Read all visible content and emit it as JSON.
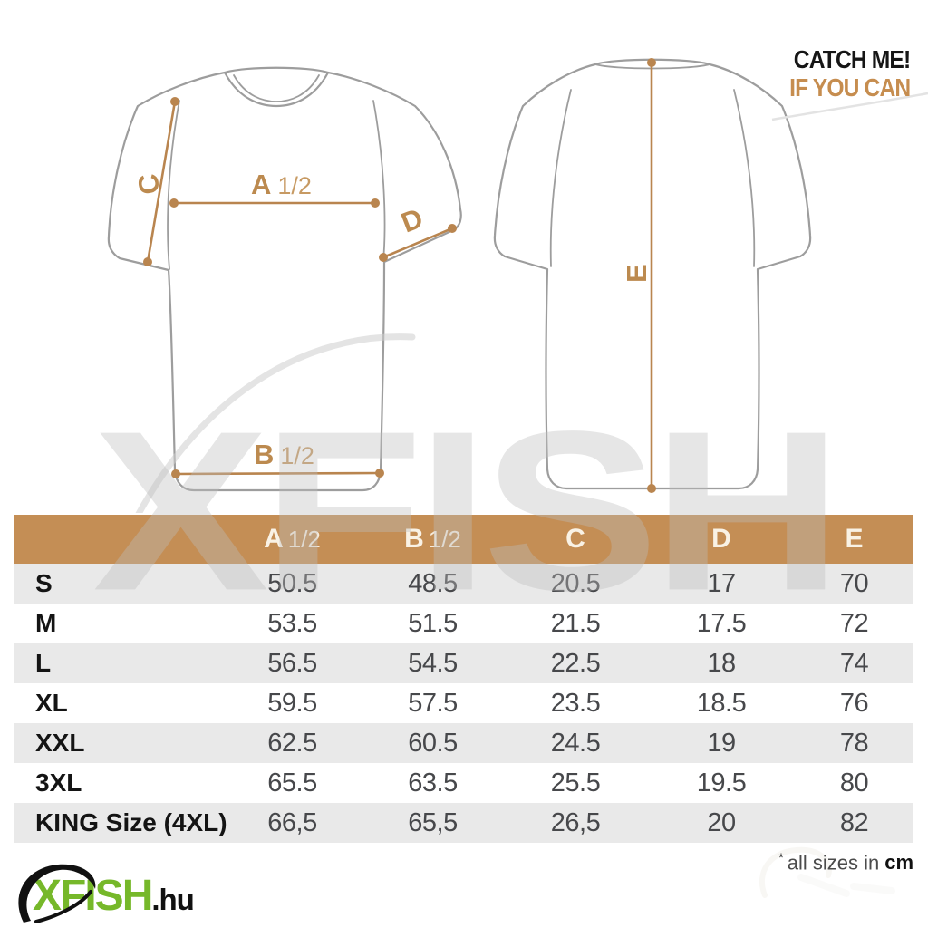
{
  "branding": {
    "catch_me": "CATCH ME!",
    "if_you_can": "IF YOU CAN",
    "watermark": "XFISH",
    "logo": {
      "name": "XFISH",
      "tld": ".hu"
    }
  },
  "diagram": {
    "measurements": {
      "chest": {
        "letter": "A",
        "fraction": "1/2"
      },
      "hem": {
        "letter": "B",
        "fraction": "1/2"
      },
      "shoulder_seam": {
        "letter": "C"
      },
      "sleeve_opening": {
        "letter": "D"
      },
      "back_length": {
        "letter": "E"
      }
    }
  },
  "table": {
    "columns": [
      {
        "letter": "A",
        "fraction": "1/2"
      },
      {
        "letter": "B",
        "fraction": "1/2"
      },
      {
        "letter": "C",
        "fraction": ""
      },
      {
        "letter": "D",
        "fraction": ""
      },
      {
        "letter": "E",
        "fraction": ""
      }
    ],
    "rows": [
      {
        "size": "S",
        "values": [
          "50.5",
          "48.5",
          "20.5",
          "17",
          "70"
        ]
      },
      {
        "size": "M",
        "values": [
          "53.5",
          "51.5",
          "21.5",
          "17.5",
          "72"
        ]
      },
      {
        "size": "L",
        "values": [
          "56.5",
          "54.5",
          "22.5",
          "18",
          "74"
        ]
      },
      {
        "size": "XL",
        "values": [
          "59.5",
          "57.5",
          "23.5",
          "18.5",
          "76"
        ]
      },
      {
        "size": "XXL",
        "values": [
          "62.5",
          "60.5",
          "24.5",
          "19",
          "78"
        ]
      },
      {
        "size": "3XL",
        "values": [
          "65.5",
          "63.5",
          "25.5",
          "19.5",
          "80"
        ]
      },
      {
        "size": "KING Size (4XL)",
        "values": [
          "66,5",
          "65,5",
          "26,5",
          "20",
          "82"
        ]
      }
    ]
  },
  "footnote": {
    "marker": "*",
    "text": "all sizes in",
    "unit": "cm"
  },
  "colors": {
    "accent_tan": "#b9854f",
    "header_bg": "#c48e55",
    "row_alt_bg": "#e9e9e9",
    "value_text": "#47484b",
    "size_text": "#141414",
    "claim_gold": "#c68d4f",
    "logo_green": "#76b82a",
    "outline_gray": "#9d9d9d"
  }
}
